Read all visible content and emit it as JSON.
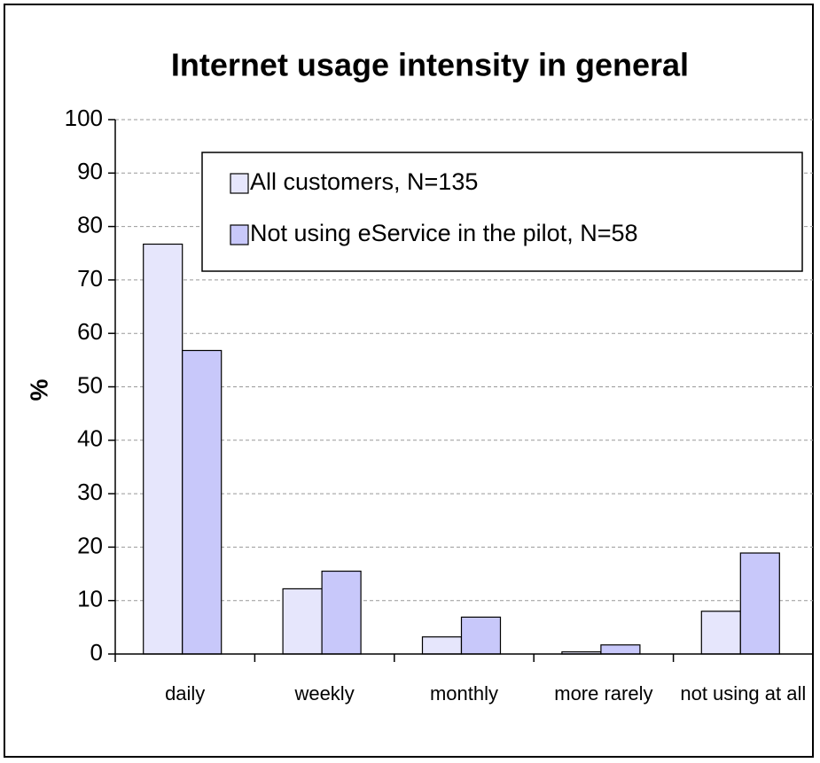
{
  "chart_data": {
    "type": "bar",
    "title": "Internet usage intensity in general",
    "y_label": "%",
    "categories": [
      "daily",
      "weekly",
      "monthly",
      "more rarely",
      "not using at all"
    ],
    "series": [
      {
        "name": "All customers, N=135",
        "color": "#e6e6fc",
        "values": [
          76.7,
          12.2,
          3.2,
          0.4,
          8.0
        ]
      },
      {
        "name": "Not using eService in the pilot, N=58",
        "color": "#c8c8fa",
        "values": [
          56.8,
          15.5,
          6.9,
          1.7,
          18.9
        ]
      }
    ],
    "ylim": [
      0,
      100
    ],
    "yticks": [
      0,
      10,
      20,
      30,
      40,
      50,
      60,
      70,
      80,
      90,
      100
    ],
    "grid": true,
    "legend": "top-right"
  }
}
